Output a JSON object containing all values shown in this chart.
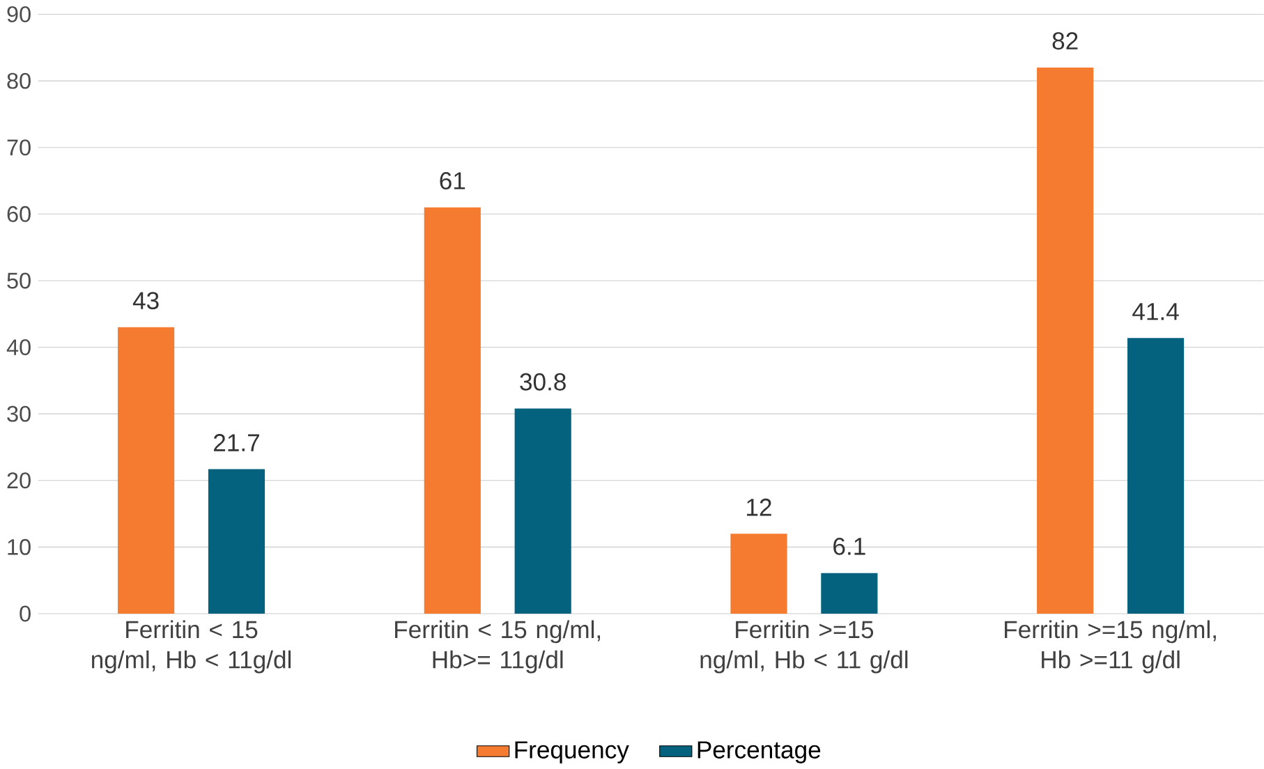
{
  "chart_data": {
    "type": "bar",
    "categories": [
      "Ferritin < 15 ng/ml, Hb < 11g/dl",
      "Ferritin < 15 ng/ml, Hb>= 11g/dl",
      "Ferritin >=15 ng/ml, Hb < 11 g/dl",
      "Ferritin >=15 ng/ml, Hb >=11 g/dl"
    ],
    "series": [
      {
        "name": "Frequency",
        "color": "#f47b30",
        "values": [
          43,
          61,
          12,
          82
        ]
      },
      {
        "name": "Percentage",
        "color": "#04627f",
        "values": [
          21.7,
          30.8,
          6.1,
          41.4
        ]
      }
    ],
    "ylim": [
      0,
      90
    ],
    "yticks": [
      0,
      10,
      20,
      30,
      40,
      50,
      60,
      70,
      80,
      90
    ],
    "grid": "y",
    "legend": "bottom",
    "data_labels": true
  }
}
